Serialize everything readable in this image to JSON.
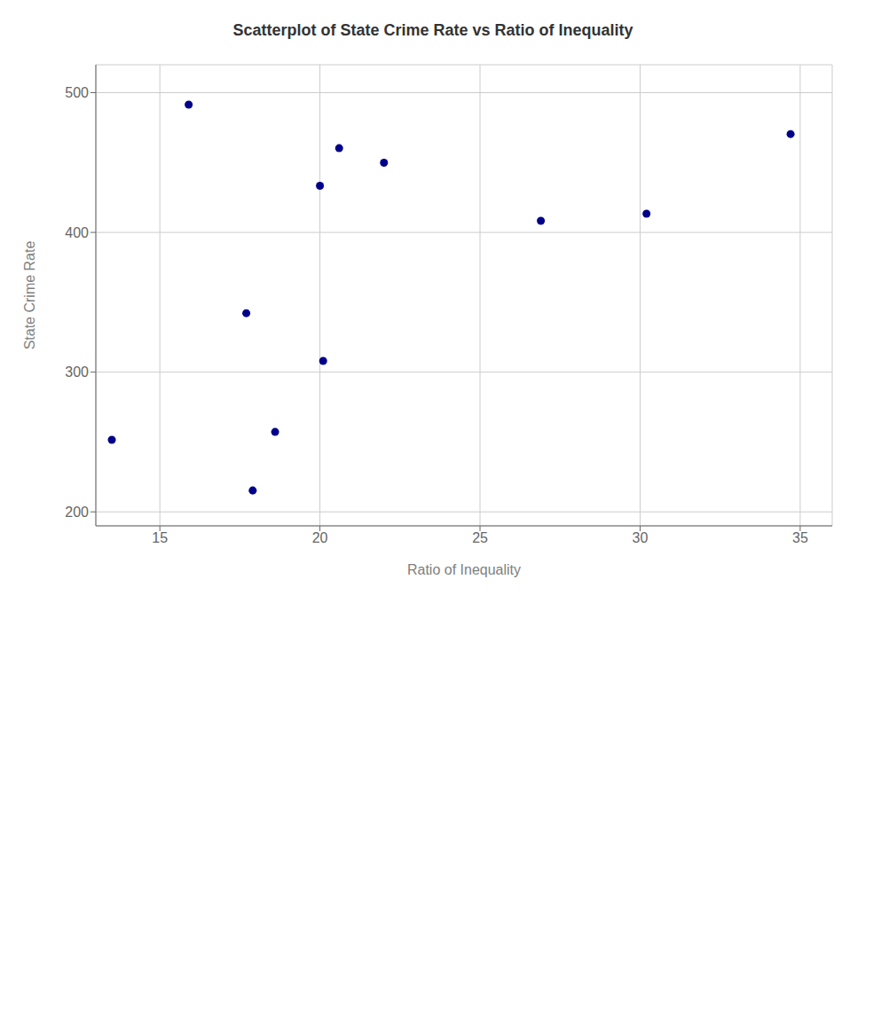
{
  "chart_data": {
    "type": "scatter",
    "title": "Scatterplot of State Crime Rate vs Ratio of Inequality",
    "x_label": "Ratio of Inequality",
    "y_label": "State Crime Rate",
    "x": [
      34.7,
      17.7,
      20.6,
      18.6,
      30.2,
      20.1,
      15.9,
      13.5,
      22.0,
      20.0,
      26.9,
      17.9
    ],
    "values": [
      470.4,
      342.2,
      460.3,
      257.2,
      413.4,
      308.0,
      491.4,
      251.6,
      449.9,
      433.4,
      408.3,
      215.3
    ],
    "color": "#00008b",
    "xlim": [
      13,
      36
    ],
    "ylim": [
      190,
      520
    ],
    "xticks": [
      15,
      20,
      25,
      30,
      35
    ],
    "yticks": [
      200,
      300,
      400,
      500
    ],
    "grid": true
  }
}
